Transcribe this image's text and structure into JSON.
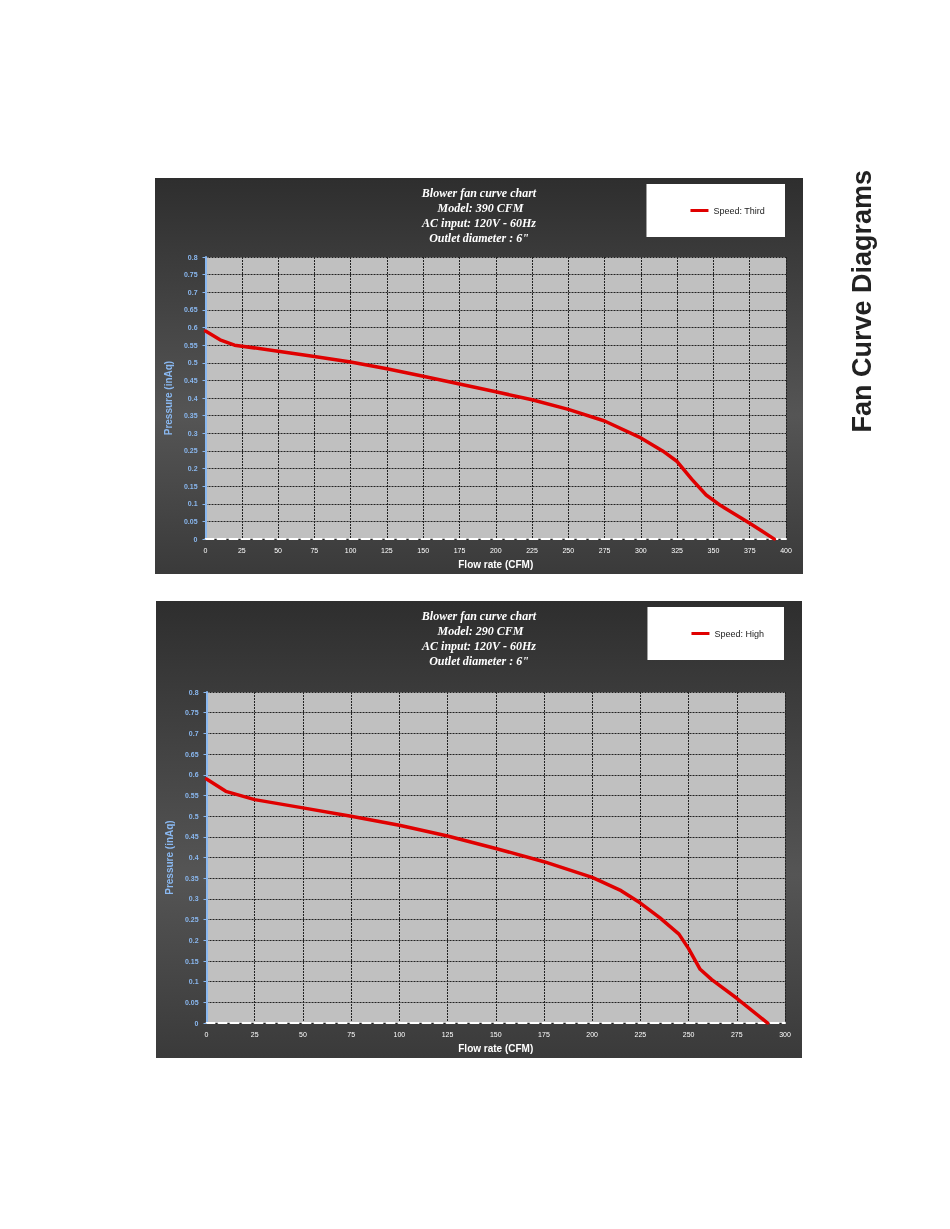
{
  "chart_data": [
    {
      "type": "line",
      "title": "Blower fan curve chart",
      "subtitle": " Model: 390 CFM\nAC input: 120V - 60Hz\nOutlet diameter : 6\"",
      "xlabel": "Flow rate (CFM)",
      "ylabel": "Pressure (inAq)",
      "annotations": [
        "Fan Curve Diagrams"
      ],
      "series": [
        {
          "name": "Speed: Third",
          "color": "#e00000",
          "x": [
            0,
            10,
            20,
            50,
            75,
            100,
            125,
            150,
            175,
            200,
            225,
            250,
            275,
            300,
            315,
            325,
            335,
            345,
            355,
            375,
            392
          ],
          "values": [
            0.59,
            0.565,
            0.55,
            0.533,
            0.518,
            0.502,
            0.483,
            0.462,
            0.44,
            0.418,
            0.395,
            0.368,
            0.335,
            0.287,
            0.25,
            0.22,
            0.17,
            0.125,
            0.095,
            0.045,
            0
          ]
        }
      ],
      "xlim": [
        0,
        400
      ],
      "xticks": [
        0,
        25,
        50,
        75,
        100,
        125,
        150,
        175,
        200,
        225,
        250,
        275,
        300,
        325,
        350,
        375,
        400
      ],
      "ylim": [
        0,
        0.8
      ],
      "yticks": [
        0,
        0.05,
        0.1,
        0.15,
        0.2,
        0.25,
        0.3,
        0.35,
        0.4,
        0.45,
        0.5,
        0.55,
        0.6,
        0.65,
        0.7,
        0.75,
        0.8
      ],
      "grid": true,
      "legend": "top right",
      "marker": "none",
      "line_style": "solid"
    },
    {
      "type": "line",
      "title": "Blower fan curve chart",
      "subtitle": " Model: 290 CFM\nAC input: 120V - 60Hz\nOutlet diameter : 6\"",
      "xlabel": "Flow rate (CFM)",
      "ylabel": "Pressure (inAq)",
      "series": [
        {
          "name": "Speed: High",
          "color": "#e00000",
          "x": [
            0,
            10,
            25,
            50,
            75,
            100,
            125,
            150,
            175,
            200,
            215,
            225,
            235,
            245,
            250,
            256,
            262,
            275,
            291
          ],
          "values": [
            0.59,
            0.56,
            0.54,
            0.52,
            0.5,
            0.478,
            0.452,
            0.422,
            0.39,
            0.352,
            0.32,
            0.29,
            0.255,
            0.215,
            0.18,
            0.13,
            0.105,
            0.06,
            0
          ]
        }
      ],
      "xlim": [
        0,
        300
      ],
      "xticks": [
        0,
        25,
        50,
        75,
        100,
        125,
        150,
        175,
        200,
        225,
        250,
        275,
        300
      ],
      "ylim": [
        0,
        0.8
      ],
      "yticks": [
        0,
        0.05,
        0.1,
        0.15,
        0.2,
        0.25,
        0.3,
        0.35,
        0.4,
        0.45,
        0.5,
        0.55,
        0.6,
        0.65,
        0.7,
        0.75,
        0.8
      ],
      "grid": true,
      "legend": "top right",
      "marker": "none",
      "line_style": "solid"
    }
  ]
}
